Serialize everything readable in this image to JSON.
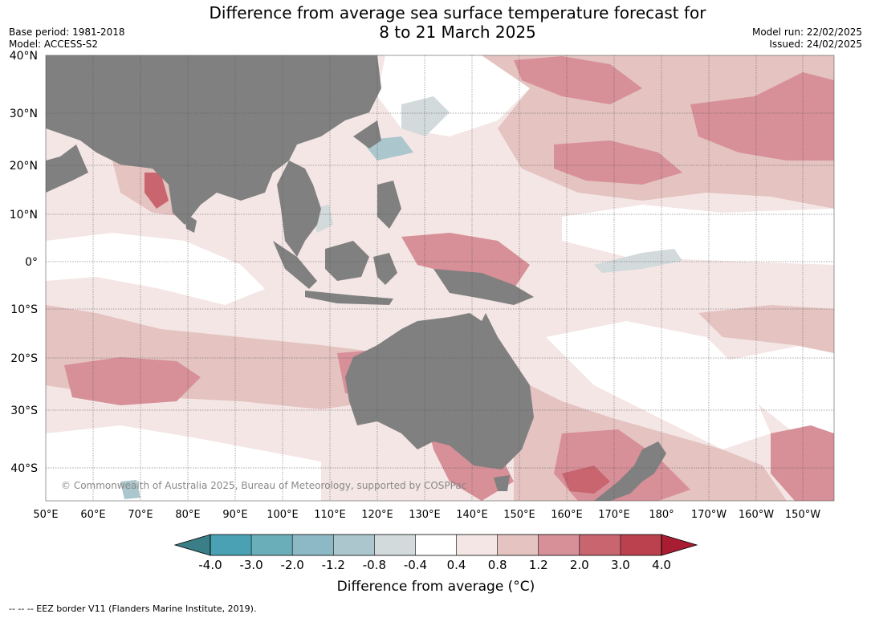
{
  "title": {
    "line1": "Difference from average sea surface temperature forecast for",
    "line2": "8 to 21 March 2025"
  },
  "meta_left": {
    "base_period": "Base period: 1981-2018",
    "model": "Model: ACCESS-S2"
  },
  "meta_right": {
    "model_run": "Model run: 22/02/2025",
    "issued": "Issued: 24/02/2025"
  },
  "map": {
    "lat_labels": [
      "40°N",
      "30°N",
      "20°N",
      "10°N",
      "0°",
      "10°S",
      "20°S",
      "30°S",
      "40°S"
    ],
    "lon_labels": [
      "50°E",
      "60°E",
      "70°E",
      "80°E",
      "90°E",
      "100°E",
      "110°E",
      "120°E",
      "130°E",
      "140°E",
      "150°E",
      "160°E",
      "170°E",
      "180°",
      "170°W",
      "160°W",
      "150°W"
    ],
    "copyright": "© Commonwealth of Australia 2025, Bureau of Meteorology, supported by COSPPac",
    "land_color": "#808080"
  },
  "colorbar": {
    "ticks": [
      "-4.0",
      "-3.0",
      "-2.0",
      "-1.2",
      "-0.8",
      "-0.4",
      "0.4",
      "0.8",
      "1.2",
      "2.0",
      "3.0",
      "4.0"
    ],
    "colors": [
      "#4aa1b3",
      "#6aaeba",
      "#8cb9c5",
      "#abc7cd",
      "#d2dadc",
      "#ffffff",
      "#f4e6e5",
      "#e4c3c1",
      "#d78f98",
      "#c8656f",
      "#bc414f"
    ],
    "under_color": "#3a7f88",
    "over_color": "#a81d32",
    "label": "Difference from average (°C)"
  },
  "footnote": "--  --  -- EEZ border V11 (Flanders Marine Institute, 2019)."
}
